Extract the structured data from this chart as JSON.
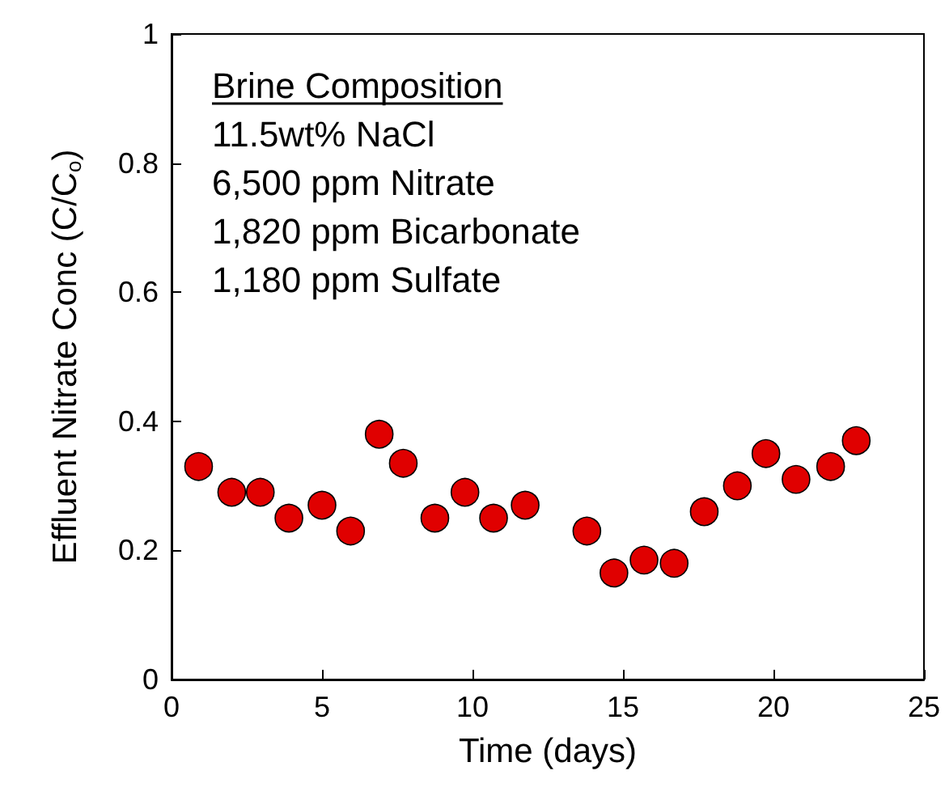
{
  "chart_data": {
    "type": "scatter",
    "xlabel": "Time (days)",
    "ylabel": "Effluent Nitrate Conc (C/C$_{o}$)",
    "annotations": [
      "Brine Composition",
      "11.5wt% NaCl",
      "6,500 ppm Nitrate",
      "1,820 ppm Bicarbonate",
      "1,180 ppm Sulfate"
    ],
    "x": [
      0.9,
      2.0,
      2.95,
      3.9,
      5.0,
      5.95,
      6.9,
      7.7,
      8.75,
      9.75,
      10.7,
      11.75,
      13.8,
      14.7,
      15.7,
      16.7,
      17.7,
      18.8,
      19.75,
      20.75,
      21.9,
      22.75
    ],
    "series": [
      {
        "color": "#e00000",
        "values": [
          0.33,
          0.29,
          0.29,
          0.25,
          0.27,
          0.23,
          0.38,
          0.335,
          0.25,
          0.29,
          0.25,
          0.27,
          0.23,
          0.165,
          0.185,
          0.18,
          0.26,
          0.3,
          0.35,
          0.31,
          0.33,
          0.37
        ]
      }
    ],
    "xlim": [
      0,
      25
    ],
    "xticks": [
      0,
      5,
      10,
      15,
      20,
      25
    ],
    "ylim": [
      0,
      1
    ],
    "yticks": [
      0,
      0.2,
      0.4,
      0.6,
      0.8,
      1
    ],
    "marker": "circle",
    "grid": false
  }
}
